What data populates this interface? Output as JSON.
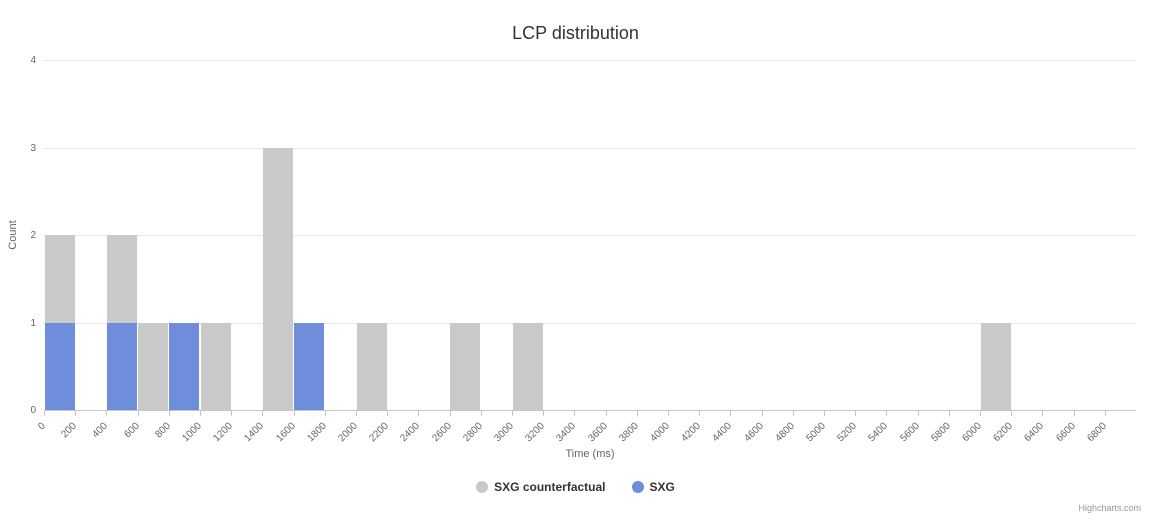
{
  "credits": "Highcharts.com",
  "chart_data": {
    "type": "bar",
    "title": "LCP distribution",
    "xlabel": "Time (ms)",
    "ylabel": "Count",
    "ylim": [
      0,
      4
    ],
    "yticks": [
      "0",
      "1",
      "2",
      "3",
      "4"
    ],
    "bin_width_ms": 200,
    "x_tick_labels": [
      "0",
      "200",
      "400",
      "600",
      "800",
      "1000",
      "1200",
      "1400",
      "1600",
      "1800",
      "2000",
      "2200",
      "2400",
      "2600",
      "2800",
      "3000",
      "3200",
      "3400",
      "3600",
      "3800",
      "4000",
      "4200",
      "4400",
      "4600",
      "4800",
      "5000",
      "5200",
      "5400",
      "5600",
      "5800",
      "6000",
      "6200",
      "6400",
      "6600",
      "6800"
    ],
    "grid": true,
    "legend_position": "bottom-center",
    "background": "#ffffff",
    "grid_color": "#e6e6e6",
    "axis_color": "#c6c6c6",
    "series": [
      {
        "name": "SXG counterfactual",
        "color": "#c9c9c9",
        "points": [
          [
            0,
            2
          ],
          [
            400,
            2
          ],
          [
            600,
            1
          ],
          [
            1000,
            1
          ],
          [
            1400,
            3
          ],
          [
            2000,
            1
          ],
          [
            2600,
            1
          ],
          [
            3000,
            1
          ],
          [
            6000,
            1
          ]
        ]
      },
      {
        "name": "SXG",
        "color": "#6e8edc",
        "points": [
          [
            0,
            1
          ],
          [
            400,
            1
          ],
          [
            800,
            1
          ],
          [
            1600,
            1
          ]
        ]
      }
    ]
  }
}
